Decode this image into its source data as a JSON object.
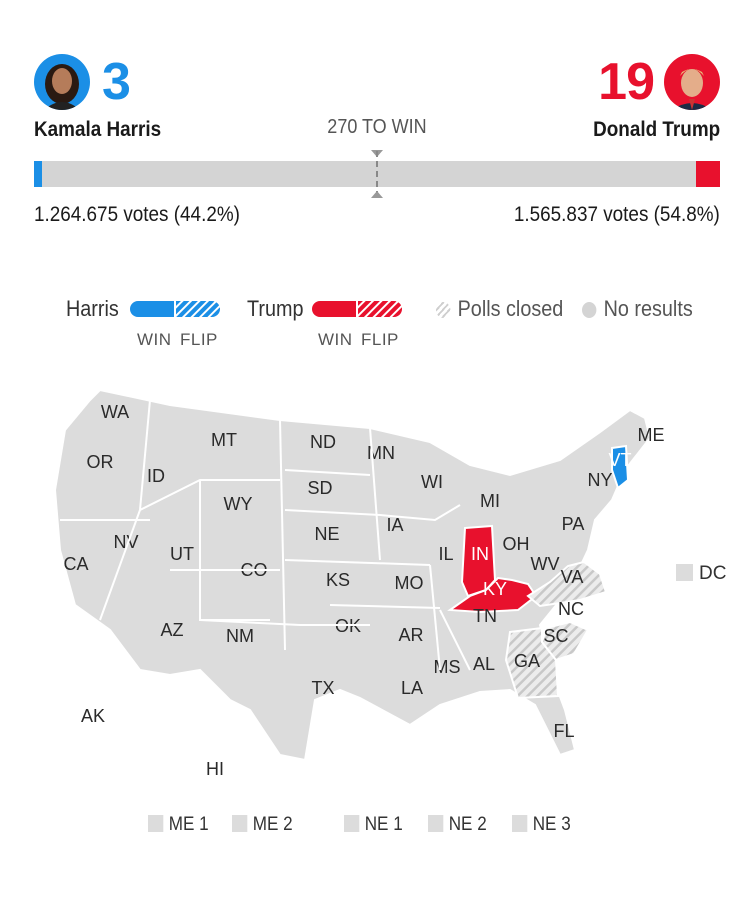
{
  "harris": {
    "name": "Kamala Harris",
    "electoral_votes": "3",
    "votes": "1.264.675 votes (44.2%)",
    "popular_share": 44.2,
    "electoral_share": 0.011,
    "color": "#1b8fe6",
    "avatar": "harris-photo"
  },
  "trump": {
    "name": "Donald Trump",
    "electoral_votes": "19",
    "votes": "1.565.837 votes (54.8%)",
    "popular_share": 54.8,
    "electoral_share": 0.035,
    "color": "#e8112d",
    "avatar": "trump-photo"
  },
  "threshold": {
    "label": "270 TO WIN",
    "value": 270
  },
  "legend": {
    "harris": "Harris",
    "trump": "Trump",
    "win": "WIN",
    "flip": "FLIP",
    "polls_closed": "Polls closed",
    "no_results": "No results"
  },
  "colors": {
    "no_result": "#dcdcdc",
    "border": "#ffffff",
    "harris_win": "#1b8fe6",
    "trump_win": "#e8112d",
    "polls_closed_hatch": "#c8c8c8"
  },
  "map": {
    "states": [
      {
        "abbr": "WA",
        "status": "none"
      },
      {
        "abbr": "OR",
        "status": "none"
      },
      {
        "abbr": "CA",
        "status": "none"
      },
      {
        "abbr": "ID",
        "status": "none"
      },
      {
        "abbr": "NV",
        "status": "none"
      },
      {
        "abbr": "MT",
        "status": "none"
      },
      {
        "abbr": "WY",
        "status": "none"
      },
      {
        "abbr": "UT",
        "status": "none"
      },
      {
        "abbr": "AZ",
        "status": "none"
      },
      {
        "abbr": "CO",
        "status": "none"
      },
      {
        "abbr": "NM",
        "status": "none"
      },
      {
        "abbr": "ND",
        "status": "none"
      },
      {
        "abbr": "SD",
        "status": "none"
      },
      {
        "abbr": "NE",
        "status": "none"
      },
      {
        "abbr": "KS",
        "status": "none"
      },
      {
        "abbr": "OK",
        "status": "none"
      },
      {
        "abbr": "TX",
        "status": "none"
      },
      {
        "abbr": "MN",
        "status": "none"
      },
      {
        "abbr": "IA",
        "status": "none"
      },
      {
        "abbr": "MO",
        "status": "none"
      },
      {
        "abbr": "AR",
        "status": "none"
      },
      {
        "abbr": "LA",
        "status": "none"
      },
      {
        "abbr": "WI",
        "status": "none"
      },
      {
        "abbr": "IL",
        "status": "none"
      },
      {
        "abbr": "MI",
        "status": "none"
      },
      {
        "abbr": "IN",
        "status": "trump-win"
      },
      {
        "abbr": "OH",
        "status": "none"
      },
      {
        "abbr": "KY",
        "status": "trump-win"
      },
      {
        "abbr": "TN",
        "status": "none"
      },
      {
        "abbr": "MS",
        "status": "none"
      },
      {
        "abbr": "AL",
        "status": "none"
      },
      {
        "abbr": "GA",
        "status": "polls-closed"
      },
      {
        "abbr": "FL",
        "status": "none"
      },
      {
        "abbr": "SC",
        "status": "polls-closed"
      },
      {
        "abbr": "NC",
        "status": "none"
      },
      {
        "abbr": "VA",
        "status": "polls-closed"
      },
      {
        "abbr": "WV",
        "status": "none"
      },
      {
        "abbr": "PA",
        "status": "none"
      },
      {
        "abbr": "NY",
        "status": "none"
      },
      {
        "abbr": "VT",
        "status": "harris-win"
      },
      {
        "abbr": "ME",
        "status": "none"
      },
      {
        "abbr": "AK",
        "status": "none"
      },
      {
        "abbr": "HI",
        "status": "none"
      }
    ],
    "dc": "DC",
    "districts": [
      "ME 1",
      "ME 2",
      "NE 1",
      "NE 2",
      "NE 3"
    ]
  }
}
